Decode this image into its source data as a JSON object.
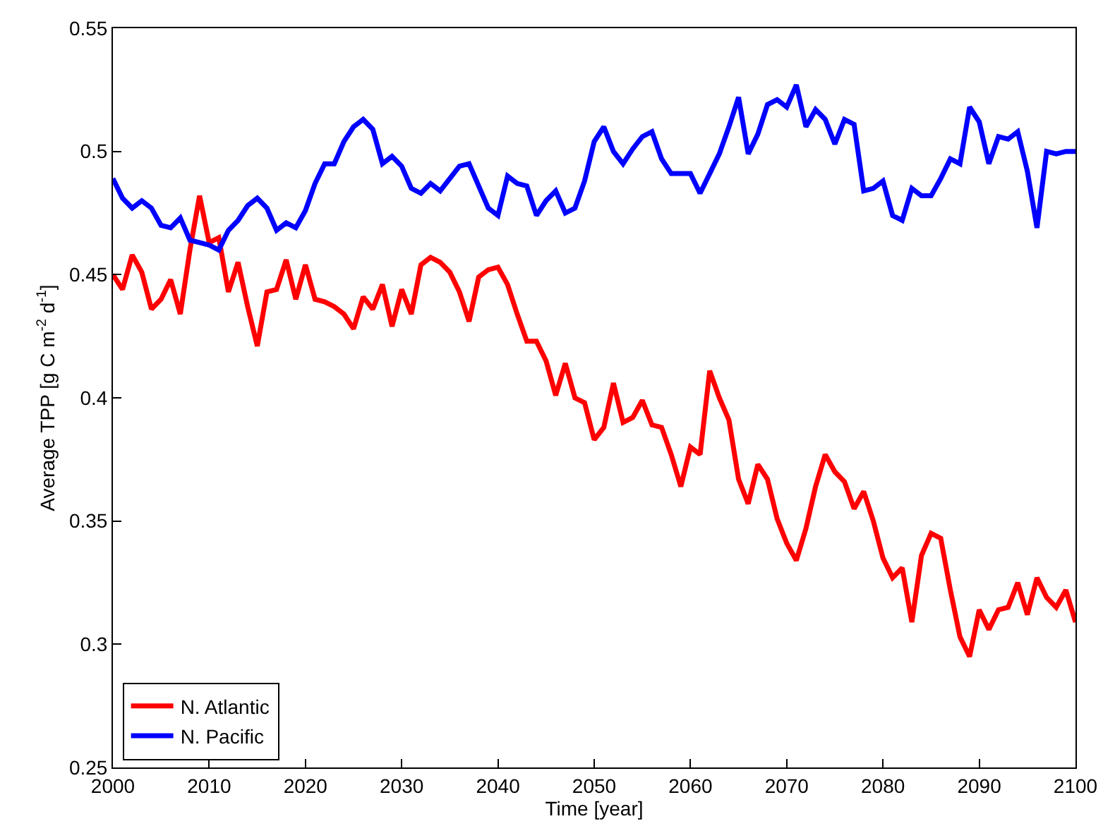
{
  "chart_data": {
    "type": "line",
    "xlabel": "Time [year]",
    "ylabel": "Average TPP [g C m$^{-2}$ d$^{-1}$]",
    "x": [
      2000,
      2001,
      2002,
      2003,
      2004,
      2005,
      2006,
      2007,
      2008,
      2009,
      2010,
      2011,
      2012,
      2013,
      2014,
      2015,
      2016,
      2017,
      2018,
      2019,
      2020,
      2021,
      2022,
      2023,
      2024,
      2025,
      2026,
      2027,
      2028,
      2029,
      2030,
      2031,
      2032,
      2033,
      2034,
      2035,
      2036,
      2037,
      2038,
      2039,
      2040,
      2041,
      2042,
      2043,
      2044,
      2045,
      2046,
      2047,
      2048,
      2049,
      2050,
      2051,
      2052,
      2053,
      2054,
      2055,
      2056,
      2057,
      2058,
      2059,
      2060,
      2061,
      2062,
      2063,
      2064,
      2065,
      2066,
      2067,
      2068,
      2069,
      2070,
      2071,
      2072,
      2073,
      2074,
      2075,
      2076,
      2077,
      2078,
      2079,
      2080,
      2081,
      2082,
      2083,
      2084,
      2085,
      2086,
      2087,
      2088,
      2089,
      2090,
      2091,
      2092,
      2093,
      2094,
      2095,
      2096,
      2097,
      2098,
      2099,
      2100
    ],
    "series": [
      {
        "name": "N. Atlantic",
        "color": "#ff0000",
        "values": [
          0.45,
          0.444,
          0.458,
          0.451,
          0.436,
          0.44,
          0.448,
          0.434,
          0.46,
          0.482,
          0.463,
          0.465,
          0.443,
          0.455,
          0.437,
          0.421,
          0.443,
          0.444,
          0.456,
          0.44,
          0.454,
          0.44,
          0.439,
          0.437,
          0.434,
          0.428,
          0.441,
          0.436,
          0.446,
          0.429,
          0.444,
          0.434,
          0.454,
          0.457,
          0.455,
          0.451,
          0.443,
          0.431,
          0.449,
          0.452,
          0.453,
          0.446,
          0.434,
          0.423,
          0.423,
          0.415,
          0.401,
          0.414,
          0.4,
          0.398,
          0.383,
          0.388,
          0.406,
          0.39,
          0.392,
          0.399,
          0.389,
          0.388,
          0.377,
          0.364,
          0.38,
          0.377,
          0.411,
          0.4,
          0.391,
          0.367,
          0.357,
          0.373,
          0.367,
          0.351,
          0.341,
          0.334,
          0.347,
          0.364,
          0.377,
          0.37,
          0.366,
          0.355,
          0.362,
          0.35,
          0.335,
          0.327,
          0.331,
          0.309,
          0.336,
          0.345,
          0.343,
          0.322,
          0.303,
          0.295,
          0.314,
          0.306,
          0.314,
          0.315,
          0.325,
          0.312,
          0.327,
          0.319,
          0.315,
          0.322,
          0.309
        ]
      },
      {
        "name": "N. Pacific",
        "color": "#0000ff",
        "values": [
          0.489,
          0.481,
          0.477,
          0.48,
          0.477,
          0.47,
          0.469,
          0.473,
          0.464,
          0.463,
          0.462,
          0.46,
          0.468,
          0.472,
          0.478,
          0.481,
          0.477,
          0.468,
          0.471,
          0.469,
          0.476,
          0.487,
          0.495,
          0.495,
          0.504,
          0.51,
          0.513,
          0.509,
          0.495,
          0.498,
          0.494,
          0.485,
          0.483,
          0.487,
          0.484,
          0.489,
          0.494,
          0.495,
          0.486,
          0.477,
          0.474,
          0.49,
          0.487,
          0.486,
          0.474,
          0.48,
          0.484,
          0.475,
          0.477,
          0.488,
          0.504,
          0.51,
          0.5,
          0.495,
          0.501,
          0.506,
          0.508,
          0.497,
          0.491,
          0.491,
          0.491,
          0.483,
          0.491,
          0.499,
          0.51,
          0.522,
          0.499,
          0.507,
          0.519,
          0.521,
          0.518,
          0.527,
          0.51,
          0.517,
          0.513,
          0.503,
          0.513,
          0.511,
          0.484,
          0.485,
          0.488,
          0.474,
          0.472,
          0.485,
          0.482,
          0.482,
          0.489,
          0.497,
          0.495,
          0.518,
          0.512,
          0.495,
          0.506,
          0.505,
          0.508,
          0.492,
          0.469,
          0.5,
          0.499,
          0.5,
          0.5
        ]
      }
    ],
    "xlim": [
      2000,
      2100
    ],
    "xticks": [
      2000,
      2010,
      2020,
      2030,
      2040,
      2050,
      2060,
      2070,
      2080,
      2090,
      2100
    ],
    "ylim": [
      0.25,
      0.55
    ],
    "yticks": [
      0.25,
      0.3,
      0.35,
      0.4,
      0.45,
      0.5,
      0.55
    ],
    "legend": "bottom left",
    "line_style": "solid",
    "marker": "none"
  }
}
